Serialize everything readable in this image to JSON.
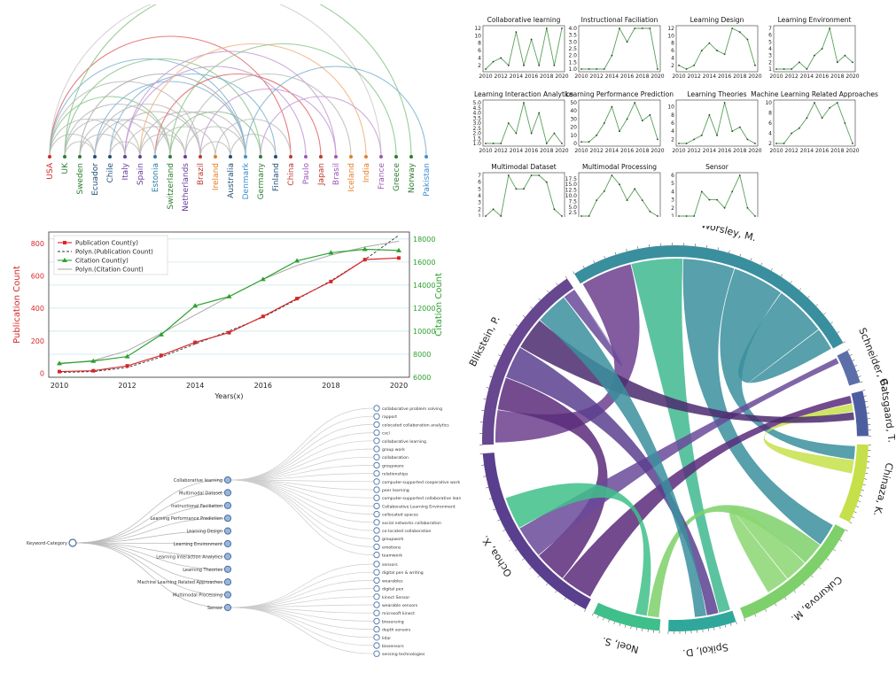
{
  "chart_data": [
    {
      "type": "arc",
      "nodes": [
        {
          "label": "USA",
          "color": "#d62728"
        },
        {
          "label": "UK",
          "color": "#2e7d32"
        },
        {
          "label": "Sweden",
          "color": "#2e7d32"
        },
        {
          "label": "Ecuador",
          "color": "#1f4e79"
        },
        {
          "label": "Chile",
          "color": "#1f4e79"
        },
        {
          "label": "Italy",
          "color": "#6a3d9a"
        },
        {
          "label": "Spain",
          "color": "#6a3d9a"
        },
        {
          "label": "Estonia",
          "color": "#2a7fa8"
        },
        {
          "label": "Switzerland",
          "color": "#2e7d32"
        },
        {
          "label": "Netherlands",
          "color": "#6a3d9a"
        },
        {
          "label": "Brazil",
          "color": "#c0392b"
        },
        {
          "label": "Ireland",
          "color": "#e67e22"
        },
        {
          "label": "Australia",
          "color": "#1f4e79"
        },
        {
          "label": "Denmark",
          "color": "#3b8ed0"
        },
        {
          "label": "Germany",
          "color": "#2e7d32"
        },
        {
          "label": "Finland",
          "color": "#1f4e79"
        },
        {
          "label": "China",
          "color": "#c0392b"
        },
        {
          "label": "Paulo",
          "color": "#9b59b6"
        },
        {
          "label": "Japan",
          "color": "#c0392b"
        },
        {
          "label": "Brasil",
          "color": "#9b59b6"
        },
        {
          "label": "Iceland",
          "color": "#e67e22"
        },
        {
          "label": "India",
          "color": "#e67e22"
        },
        {
          "label": "France",
          "color": "#9b59b6"
        },
        {
          "label": "Greece",
          "color": "#2e7d32"
        },
        {
          "label": "Norway",
          "color": "#2e7d32"
        },
        {
          "label": "Pakistan",
          "color": "#3b8ed0"
        }
      ],
      "edges": [
        [
          0,
          22,
          "#cccccc"
        ],
        [
          0,
          16,
          "#e06666"
        ],
        [
          0,
          13,
          "#7fb3d5"
        ],
        [
          0,
          10,
          "#bbbbbb"
        ],
        [
          0,
          8,
          "#8bc48b"
        ],
        [
          0,
          5,
          "#bbbbbb"
        ],
        [
          1,
          24,
          "#8bc48b"
        ],
        [
          1,
          14,
          "#8bc48b"
        ],
        [
          1,
          6,
          "#bbbbbb"
        ],
        [
          1,
          3,
          "#bbbbbb"
        ],
        [
          2,
          13,
          "#aaaaaa"
        ],
        [
          2,
          7,
          "#bbbbbb"
        ],
        [
          3,
          13,
          "#7fb3d5"
        ],
        [
          3,
          8,
          "#bbbbbb"
        ],
        [
          4,
          15,
          "#7fb3d5"
        ],
        [
          4,
          10,
          "#bbbbbb"
        ],
        [
          4,
          6,
          "#bbbbbb"
        ],
        [
          5,
          19,
          "#c39bd3"
        ],
        [
          5,
          17,
          "#c39bd3"
        ],
        [
          5,
          9,
          "#bbbbbb"
        ],
        [
          6,
          21,
          "#f0b27a"
        ],
        [
          6,
          12,
          "#bbbbbb"
        ],
        [
          7,
          18,
          "#e06666"
        ],
        [
          7,
          11,
          "#bbbbbb"
        ],
        [
          8,
          23,
          "#8bc48b"
        ],
        [
          8,
          14,
          "#8bc48b"
        ],
        [
          9,
          20,
          "#bbbbbb"
        ],
        [
          9,
          13,
          "#bbbbbb"
        ],
        [
          10,
          19,
          "#c39bd3"
        ],
        [
          10,
          12,
          "#bbbbbb"
        ],
        [
          11,
          16,
          "#bbbbbb"
        ],
        [
          12,
          15,
          "#bbbbbb"
        ],
        [
          13,
          25,
          "#7fb3d5"
        ],
        [
          14,
          22,
          "#c39bd3"
        ],
        [
          3,
          10,
          "#bbbbbb"
        ],
        [
          2,
          5,
          "#bbbbbb"
        ],
        [
          6,
          9,
          "#bbbbbb"
        ],
        [
          0,
          3,
          "#bbbbbb"
        ],
        [
          1,
          8,
          "#bbbbbb"
        ],
        [
          7,
          13,
          "#bbbbbb"
        ]
      ]
    },
    {
      "type": "line-grid",
      "x": [
        2010,
        2011,
        2012,
        2013,
        2014,
        2015,
        2016,
        2017,
        2018,
        2019,
        2020
      ],
      "xticks": [
        "2010",
        "2012",
        "2014",
        "2016",
        "2018",
        "2020"
      ],
      "panels": [
        {
          "title": "Collaborative learning",
          "values": [
            1,
            3,
            4,
            2,
            11,
            2,
            9,
            2,
            12,
            2,
            12
          ],
          "ylim": [
            1,
            12
          ],
          "yticks": [
            "2",
            "4",
            "6",
            "8",
            "10",
            "12"
          ]
        },
        {
          "title": "Instructional Faciliation",
          "values": [
            1,
            1,
            1,
            1,
            2,
            4,
            3,
            4,
            4,
            4,
            1
          ],
          "ylim": [
            1,
            4
          ],
          "yticks": [
            "1.0",
            "1.5",
            "2.0",
            "2.5",
            "3.0",
            "3.5",
            "4.0"
          ]
        },
        {
          "title": "Learning Design",
          "values": [
            2,
            1,
            2,
            6,
            8,
            6,
            5,
            12,
            11,
            9,
            2
          ],
          "ylim": [
            1,
            12
          ],
          "yticks": [
            "2",
            "4",
            "6",
            "8",
            "10",
            "12"
          ]
        },
        {
          "title": "Learning Environment",
          "values": [
            1,
            1,
            1,
            2,
            1,
            3,
            4,
            7,
            2,
            3,
            2
          ],
          "ylim": [
            1,
            7
          ],
          "yticks": [
            "1",
            "2",
            "3",
            "4",
            "5",
            "6",
            "7"
          ]
        },
        {
          "title": "Learning Interaction Analytics",
          "values": [
            1,
            1,
            1,
            3,
            2,
            5,
            2,
            4,
            1,
            2,
            1
          ],
          "ylim": [
            1,
            5
          ],
          "yticks": [
            "1.0",
            "1.5",
            "2.0",
            "2.5",
            "3.0",
            "3.5",
            "4.0",
            "4.5",
            "5.0"
          ]
        },
        {
          "title": "Learning Performance Prediction",
          "values": [
            2,
            2,
            10,
            25,
            45,
            15,
            30,
            50,
            28,
            35,
            5
          ],
          "ylim": [
            0,
            50
          ],
          "yticks": [
            "0",
            "10",
            "20",
            "30",
            "40",
            "50"
          ]
        },
        {
          "title": "Learning Theories",
          "values": [
            1,
            1,
            2,
            3,
            8,
            3,
            11,
            4,
            5,
            2,
            1
          ],
          "ylim": [
            1,
            11
          ],
          "yticks": [
            "2",
            "4",
            "6",
            "8",
            "10"
          ]
        },
        {
          "title": "Machine Learning Related Approaches",
          "values": [
            2,
            2,
            4,
            5,
            7,
            10,
            7,
            9,
            10,
            6,
            2
          ],
          "ylim": [
            2,
            10
          ],
          "yticks": [
            "2",
            "4",
            "6",
            "8",
            "10"
          ]
        },
        {
          "title": "Multimodal Dataset",
          "values": [
            1,
            2,
            1,
            7,
            5,
            5,
            7,
            7,
            6,
            2,
            1
          ],
          "ylim": [
            1,
            7
          ],
          "yticks": [
            "1",
            "2",
            "3",
            "4",
            "5",
            "6",
            "7"
          ]
        },
        {
          "title": "Multimodal Processing",
          "values": [
            1,
            1,
            8,
            12,
            19,
            15,
            8,
            13,
            8,
            3,
            1
          ],
          "ylim": [
            1,
            19
          ],
          "yticks": [
            "2.5",
            "5.0",
            "7.5",
            "10.0",
            "12.5",
            "15.0",
            "17.5"
          ]
        },
        {
          "title": "Sensor",
          "values": [
            1,
            1,
            1,
            4,
            3,
            3,
            2,
            4,
            6,
            2,
            1
          ],
          "ylim": [
            1,
            6
          ],
          "yticks": [
            "1",
            "2",
            "3",
            "4",
            "5",
            "6"
          ]
        }
      ]
    },
    {
      "type": "line",
      "x": [
        2010,
        2011,
        2012,
        2013,
        2014,
        2015,
        2016,
        2017,
        2018,
        2019,
        2020
      ],
      "series": [
        {
          "name": "Publication Count(y)",
          "values": [
            10,
            15,
            45,
            110,
            190,
            250,
            350,
            460,
            565,
            700,
            710
          ],
          "color": "#d62728",
          "axis": "left"
        },
        {
          "name": "Citation Count(y)",
          "values": [
            7200,
            7400,
            7800,
            9700,
            12200,
            13000,
            14500,
            16100,
            16800,
            17100,
            17000
          ],
          "color": "#2ca02c",
          "axis": "right"
        }
      ],
      "trend": [
        {
          "name": "Polyn.(Publication Count)",
          "values": [
            5,
            10,
            35,
            100,
            180,
            260,
            345,
            455,
            570,
            700,
            850
          ],
          "axis": "left"
        },
        {
          "name": "Polyn.(Citation Count)",
          "values": [
            7150,
            7450,
            8300,
            9800,
            11400,
            13000,
            14500,
            15700,
            16600,
            17300,
            17800
          ],
          "axis": "right"
        }
      ],
      "ylabel": "Publication Count",
      "y2label": "Citation Count",
      "xlabel": "Years(x)",
      "ylim": [
        -25,
        870
      ],
      "y2lim": [
        6000,
        18600
      ],
      "xticks": [
        "2010",
        "2012",
        "2014",
        "2016",
        "2018",
        "2020"
      ],
      "yticks": [
        "0",
        "200",
        "400",
        "600",
        "800"
      ],
      "y2ticks": [
        "6000",
        "8000",
        "10000",
        "12000",
        "14000",
        "16000",
        "18000"
      ]
    },
    {
      "type": "tree",
      "root": "Keyword-Category",
      "children": [
        {
          "label": "Collaborative learning",
          "children": [
            "collaborative problem solving",
            "rapport",
            "colocated collaboration analytics",
            "cscl",
            "collaborative learning",
            "group work",
            "collaboration",
            "groupware",
            "relationships",
            "computer-supported cooperative work",
            "peer learning",
            "computer-supported collaborative learning",
            "Collaborative Learning Environment",
            "collocated spaces",
            "social networks collaboration",
            "co-located collaboration",
            "groupwork",
            "emotions",
            "teamwork"
          ]
        },
        {
          "label": "Multimodal Dataset",
          "children": []
        },
        {
          "label": "Instructional Faciliation",
          "children": []
        },
        {
          "label": "Learning Performance Prediction",
          "children": []
        },
        {
          "label": "Learning Design",
          "children": []
        },
        {
          "label": "Learning Environment",
          "children": []
        },
        {
          "label": "Learning Interaction Analytics",
          "children": []
        },
        {
          "label": "Learning Theories",
          "children": []
        },
        {
          "label": "Machine Learning Related Approaches",
          "children": []
        },
        {
          "label": "Multimodal Processing",
          "children": []
        },
        {
          "label": "Sensor",
          "children": [
            "sensors",
            "digital pen & writing",
            "wearables",
            "digital pen",
            "kinect Sensor",
            "wearable sensors",
            "microsoft kinect",
            "biosensing",
            "depth sensors",
            "lidar",
            "biosensors",
            "sensing technologies"
          ]
        }
      ]
    },
    {
      "type": "chord",
      "segments": [
        {
          "label": "Worsley, M.",
          "size": 54,
          "color": "#3a8f9e"
        },
        {
          "label": "Schneider, B.",
          "size": 6,
          "color": "#5c6fa8"
        },
        {
          "label": "Gatsgaard, T.",
          "size": 8,
          "color": "#4d5ea0"
        },
        {
          "label": "Chinaza, K.",
          "size": 14,
          "color": "#c5e04a"
        },
        {
          "label": "Cukurova, M.",
          "size": 24,
          "color": "#7ed06a"
        },
        {
          "label": "Spikol, D.",
          "size": 12,
          "color": "#2fa89b"
        },
        {
          "label": "Noel, S.",
          "size": 12,
          "color": "#3fbf8a"
        },
        {
          "label": "Ochoa, X.",
          "size": 34,
          "color": "#5a3f8e"
        },
        {
          "label": "Blikstein, P.",
          "size": 34,
          "color": "#67478f"
        }
      ],
      "links": [
        [
          0,
          8,
          "#6c3f8e"
        ],
        [
          0,
          5,
          "#40b88f"
        ],
        [
          0,
          4,
          "#3a8f9e"
        ],
        [
          0,
          3,
          "#3a8f9e"
        ],
        [
          7,
          2,
          "#5a2a7a"
        ],
        [
          7,
          8,
          "#5b2c7a"
        ],
        [
          4,
          6,
          "#7ed06a"
        ],
        [
          1,
          7,
          "#6a4a9a"
        ],
        [
          3,
          2,
          "#c5e04a"
        ],
        [
          8,
          5,
          "#5a3f8e"
        ],
        [
          2,
          8,
          "#4b2a6e"
        ],
        [
          4,
          4,
          "#8bd672"
        ],
        [
          0,
          0,
          "#3a8f9e"
        ],
        [
          6,
          7,
          "#3fbf8a"
        ],
        [
          5,
          8,
          "#3a8f9e"
        ],
        [
          8,
          8,
          "#6a4a9a"
        ]
      ]
    }
  ]
}
